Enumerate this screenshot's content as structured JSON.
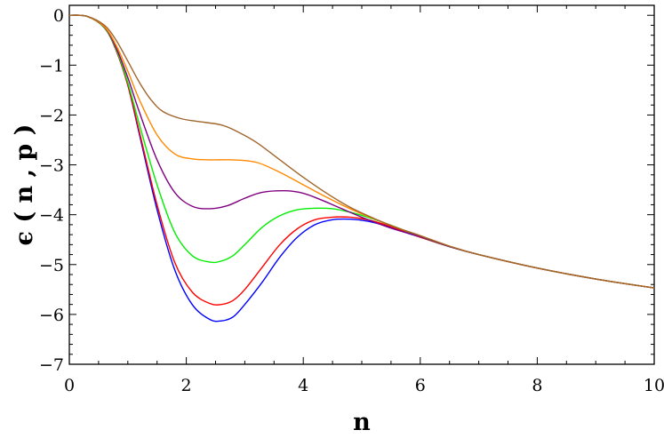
{
  "chart_data": {
    "type": "line",
    "title": "",
    "xlabel": "n",
    "ylabel": "ϵ ( n , p )",
    "xlim": [
      0,
      10
    ],
    "ylim": [
      -7,
      0.2
    ],
    "xticks": [
      0,
      2,
      4,
      6,
      8,
      10
    ],
    "yticks": [
      0,
      -1,
      -2,
      -3,
      -4,
      -5,
      -6,
      -7
    ],
    "xtick_labels": [
      "0",
      "2",
      "4",
      "6",
      "8",
      "10"
    ],
    "ytick_labels": [
      "0",
      "−1",
      "−2",
      "−3",
      "−4",
      "−5",
      "−6",
      "−7"
    ],
    "grid": false,
    "legend": "none",
    "series": [
      {
        "color": "#0000ff",
        "points": [
          [
            0,
            0
          ],
          [
            0.3,
            -0.02
          ],
          [
            0.6,
            -0.25
          ],
          [
            0.8,
            -0.7
          ],
          [
            1.0,
            -1.4
          ],
          [
            1.2,
            -2.4
          ],
          [
            1.5,
            -3.9
          ],
          [
            1.8,
            -5.1
          ],
          [
            2.1,
            -5.8
          ],
          [
            2.4,
            -6.1
          ],
          [
            2.6,
            -6.13
          ],
          [
            2.8,
            -6.05
          ],
          [
            3.0,
            -5.8
          ],
          [
            3.3,
            -5.35
          ],
          [
            3.6,
            -4.85
          ],
          [
            3.9,
            -4.45
          ],
          [
            4.2,
            -4.2
          ],
          [
            4.5,
            -4.1
          ],
          [
            4.8,
            -4.09
          ],
          [
            5.1,
            -4.13
          ],
          [
            5.4,
            -4.22
          ],
          [
            5.7,
            -4.34
          ],
          [
            6.0,
            -4.45
          ],
          [
            6.5,
            -4.64
          ],
          [
            7,
            -4.8
          ],
          [
            8,
            -5.07
          ],
          [
            9,
            -5.29
          ],
          [
            10,
            -5.47
          ]
        ]
      },
      {
        "color": "#ff0000",
        "points": [
          [
            0,
            0
          ],
          [
            0.3,
            -0.02
          ],
          [
            0.6,
            -0.25
          ],
          [
            0.8,
            -0.7
          ],
          [
            1.0,
            -1.4
          ],
          [
            1.2,
            -2.35
          ],
          [
            1.5,
            -3.8
          ],
          [
            1.8,
            -4.95
          ],
          [
            2.1,
            -5.55
          ],
          [
            2.4,
            -5.78
          ],
          [
            2.6,
            -5.8
          ],
          [
            2.8,
            -5.72
          ],
          [
            3.0,
            -5.5
          ],
          [
            3.3,
            -5.05
          ],
          [
            3.6,
            -4.6
          ],
          [
            3.9,
            -4.28
          ],
          [
            4.2,
            -4.1
          ],
          [
            4.5,
            -4.05
          ],
          [
            4.8,
            -4.05
          ],
          [
            5.1,
            -4.1
          ],
          [
            5.4,
            -4.2
          ],
          [
            5.7,
            -4.32
          ],
          [
            6.0,
            -4.45
          ],
          [
            6.5,
            -4.64
          ],
          [
            7,
            -4.8
          ],
          [
            8,
            -5.07
          ],
          [
            9,
            -5.29
          ],
          [
            10,
            -5.47
          ]
        ]
      },
      {
        "color": "#00ee00",
        "points": [
          [
            0,
            0
          ],
          [
            0.3,
            -0.02
          ],
          [
            0.6,
            -0.25
          ],
          [
            0.8,
            -0.68
          ],
          [
            1.0,
            -1.35
          ],
          [
            1.2,
            -2.2
          ],
          [
            1.5,
            -3.4
          ],
          [
            1.8,
            -4.35
          ],
          [
            2.1,
            -4.82
          ],
          [
            2.4,
            -4.95
          ],
          [
            2.6,
            -4.93
          ],
          [
            2.8,
            -4.82
          ],
          [
            3.0,
            -4.6
          ],
          [
            3.3,
            -4.25
          ],
          [
            3.6,
            -4.02
          ],
          [
            3.9,
            -3.9
          ],
          [
            4.2,
            -3.87
          ],
          [
            4.5,
            -3.88
          ],
          [
            4.8,
            -3.95
          ],
          [
            5.1,
            -4.05
          ],
          [
            5.4,
            -4.17
          ],
          [
            5.7,
            -4.3
          ],
          [
            6.0,
            -4.44
          ],
          [
            6.5,
            -4.64
          ],
          [
            7,
            -4.8
          ],
          [
            8,
            -5.07
          ],
          [
            9,
            -5.29
          ],
          [
            10,
            -5.47
          ]
        ]
      },
      {
        "color": "#800080",
        "points": [
          [
            0,
            0
          ],
          [
            0.3,
            -0.02
          ],
          [
            0.6,
            -0.24
          ],
          [
            0.8,
            -0.65
          ],
          [
            1.0,
            -1.25
          ],
          [
            1.2,
            -1.95
          ],
          [
            1.5,
            -2.9
          ],
          [
            1.8,
            -3.55
          ],
          [
            2.1,
            -3.83
          ],
          [
            2.4,
            -3.88
          ],
          [
            2.7,
            -3.82
          ],
          [
            3.0,
            -3.67
          ],
          [
            3.3,
            -3.55
          ],
          [
            3.7,
            -3.52
          ],
          [
            4.0,
            -3.57
          ],
          [
            4.3,
            -3.7
          ],
          [
            4.6,
            -3.85
          ],
          [
            5.0,
            -4.05
          ],
          [
            5.5,
            -4.27
          ],
          [
            6.0,
            -4.44
          ],
          [
            6.5,
            -4.64
          ],
          [
            7,
            -4.8
          ],
          [
            8,
            -5.07
          ],
          [
            9,
            -5.29
          ],
          [
            10,
            -5.47
          ]
        ]
      },
      {
        "color": "#ff8800",
        "points": [
          [
            0,
            0
          ],
          [
            0.3,
            -0.02
          ],
          [
            0.6,
            -0.23
          ],
          [
            0.8,
            -0.6
          ],
          [
            1.0,
            -1.12
          ],
          [
            1.2,
            -1.7
          ],
          [
            1.5,
            -2.4
          ],
          [
            1.8,
            -2.78
          ],
          [
            2.1,
            -2.88
          ],
          [
            2.4,
            -2.9
          ],
          [
            2.8,
            -2.9
          ],
          [
            3.2,
            -2.95
          ],
          [
            3.6,
            -3.15
          ],
          [
            4.0,
            -3.4
          ],
          [
            4.4,
            -3.65
          ],
          [
            4.8,
            -3.88
          ],
          [
            5.2,
            -4.08
          ],
          [
            5.6,
            -4.26
          ],
          [
            6.0,
            -4.42
          ],
          [
            6.5,
            -4.63
          ],
          [
            7,
            -4.8
          ],
          [
            8,
            -5.07
          ],
          [
            9,
            -5.29
          ],
          [
            10,
            -5.47
          ]
        ]
      },
      {
        "color": "#a0662b",
        "points": [
          [
            0,
            0
          ],
          [
            0.3,
            -0.02
          ],
          [
            0.6,
            -0.2
          ],
          [
            0.8,
            -0.5
          ],
          [
            1.0,
            -0.92
          ],
          [
            1.2,
            -1.35
          ],
          [
            1.4,
            -1.7
          ],
          [
            1.6,
            -1.93
          ],
          [
            1.9,
            -2.07
          ],
          [
            2.2,
            -2.13
          ],
          [
            2.6,
            -2.2
          ],
          [
            2.9,
            -2.35
          ],
          [
            3.2,
            -2.55
          ],
          [
            3.6,
            -2.9
          ],
          [
            4.0,
            -3.25
          ],
          [
            4.4,
            -3.57
          ],
          [
            4.8,
            -3.85
          ],
          [
            5.2,
            -4.07
          ],
          [
            5.6,
            -4.26
          ],
          [
            6.0,
            -4.42
          ],
          [
            6.5,
            -4.63
          ],
          [
            7,
            -4.8
          ],
          [
            8,
            -5.07
          ],
          [
            9,
            -5.29
          ],
          [
            10,
            -5.47
          ]
        ]
      }
    ]
  }
}
